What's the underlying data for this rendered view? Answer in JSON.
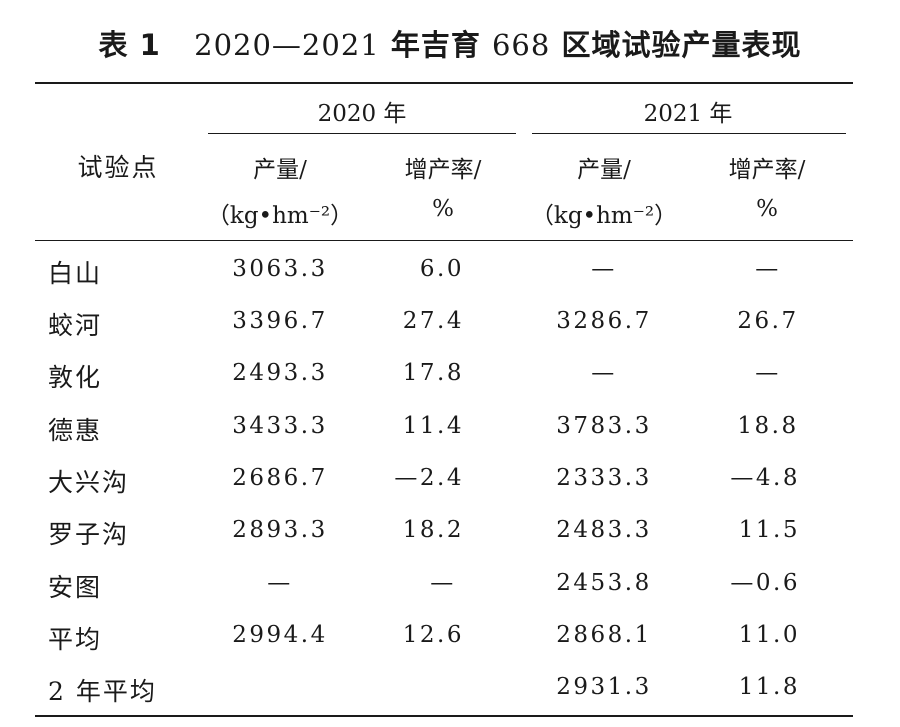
{
  "caption": {
    "label": "表 1",
    "title_num": "2020—2021",
    "title_mid": "年吉育",
    "variety_num": "668",
    "title_end": "区域试验产量表现"
  },
  "header": {
    "site_label": "试验点",
    "year_2020": "2020 年",
    "year_2021": "2021 年",
    "yield_label": "产量/",
    "yield_unit": "（kg•hm⁻²）",
    "rate_label": "增产率/",
    "rate_unit": "%"
  },
  "rows": [
    {
      "site": "白山",
      "y2020_yield": "3063.3",
      "y2020_rate": "6.0",
      "y2021_yield": "—",
      "y2021_rate": "—"
    },
    {
      "site": "蛟河",
      "y2020_yield": "3396.7",
      "y2020_rate": "27.4",
      "y2021_yield": "3286.7",
      "y2021_rate": "26.7"
    },
    {
      "site": "敦化",
      "y2020_yield": "2493.3",
      "y2020_rate": "17.8",
      "y2021_yield": "—",
      "y2021_rate": "—"
    },
    {
      "site": "德惠",
      "y2020_yield": "3433.3",
      "y2020_rate": "11.4",
      "y2021_yield": "3783.3",
      "y2021_rate": "18.8"
    },
    {
      "site": "大兴沟",
      "y2020_yield": "2686.7",
      "y2020_rate": "—2.4",
      "y2021_yield": "2333.3",
      "y2021_rate": "—4.8"
    },
    {
      "site": "罗子沟",
      "y2020_yield": "2893.3",
      "y2020_rate": "18.2",
      "y2021_yield": "2483.3",
      "y2021_rate": "11.5"
    },
    {
      "site": "安图",
      "y2020_yield": "—",
      "y2020_rate": "—",
      "y2021_yield": "2453.8",
      "y2021_rate": "—0.6"
    },
    {
      "site": "平均",
      "y2020_yield": "2994.4",
      "y2020_rate": "12.6",
      "y2021_yield": "2868.1",
      "y2021_rate": "11.0"
    },
    {
      "site": "2 年平均",
      "y2020_yield": "",
      "y2020_rate": "",
      "y2021_yield": "2931.3",
      "y2021_rate": "11.8"
    }
  ]
}
